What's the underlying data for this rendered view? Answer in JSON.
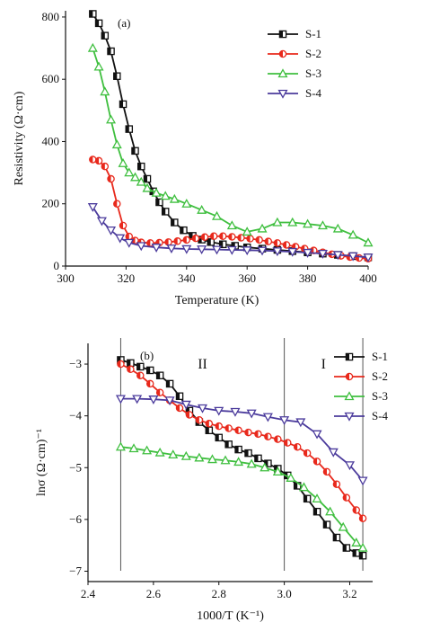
{
  "chart_data": [
    {
      "type": "line",
      "panel_label": "(a)",
      "xlabel": "Temperature (K)",
      "ylabel": "Resistivity (Ω·cm)",
      "xlim": [
        300,
        400
      ],
      "ylim": [
        0,
        820
      ],
      "xticks": [
        300,
        320,
        340,
        360,
        380,
        400
      ],
      "yticks": [
        0,
        200,
        400,
        600,
        800
      ],
      "legend_position": "top-right",
      "series": [
        {
          "name": "S-1",
          "color": "#111111",
          "marker": "square",
          "x": [
            309,
            311,
            313,
            315,
            317,
            319,
            321,
            323,
            325,
            327,
            329,
            331,
            333,
            336,
            339,
            342,
            345,
            348,
            352,
            356,
            360,
            365,
            370,
            375,
            380,
            385,
            390,
            395,
            400
          ],
          "y": [
            810,
            780,
            740,
            690,
            610,
            520,
            440,
            370,
            320,
            280,
            240,
            205,
            175,
            140,
            115,
            97,
            85,
            77,
            70,
            65,
            60,
            56,
            52,
            48,
            44,
            40,
            36,
            32,
            28
          ]
        },
        {
          "name": "S-2",
          "color": "#e8291c",
          "marker": "half-circle",
          "x": [
            309,
            311,
            313,
            315,
            317,
            319,
            321,
            323,
            325,
            328,
            331,
            334,
            337,
            340,
            343,
            346,
            349,
            352,
            355,
            358,
            361,
            364,
            367,
            370,
            373,
            376,
            379,
            382,
            385,
            388,
            391,
            394,
            397,
            400
          ],
          "y": [
            342,
            338,
            320,
            280,
            200,
            130,
            95,
            82,
            76,
            74,
            75,
            77,
            80,
            84,
            89,
            93,
            96,
            96,
            94,
            91,
            88,
            84,
            79,
            74,
            68,
            62,
            56,
            50,
            44,
            38,
            33,
            29,
            26,
            24
          ]
        },
        {
          "name": "S-3",
          "color": "#3fbf3f",
          "marker": "triangle-up",
          "x": [
            309,
            311,
            313,
            315,
            317,
            319,
            321,
            323,
            325,
            327,
            330,
            333,
            336,
            340,
            345,
            350,
            355,
            360,
            365,
            370,
            375,
            380,
            385,
            390,
            395,
            400
          ],
          "y": [
            700,
            640,
            560,
            470,
            390,
            330,
            300,
            285,
            270,
            250,
            235,
            225,
            215,
            200,
            180,
            160,
            130,
            110,
            120,
            140,
            140,
            135,
            130,
            120,
            100,
            75
          ]
        },
        {
          "name": "S-4",
          "color": "#4b3b9c",
          "marker": "triangle-down",
          "x": [
            309,
            312,
            315,
            318,
            321,
            325,
            330,
            335,
            340,
            345,
            350,
            355,
            360,
            365,
            370,
            375,
            380,
            385,
            390,
            395,
            400
          ],
          "y": [
            190,
            145,
            115,
            90,
            75,
            65,
            60,
            57,
            55,
            54,
            53,
            52,
            51,
            50,
            48,
            46,
            43,
            40,
            36,
            32,
            28
          ]
        }
      ]
    },
    {
      "type": "line",
      "panel_label": "(b)",
      "xlabel": "1000/T (K⁻¹)",
      "ylabel": "lnσ (Ω·cm)⁻¹",
      "xlim": [
        2.4,
        3.27
      ],
      "ylim": [
        -7.2,
        -2.6
      ],
      "xticks": [
        2.4,
        2.6,
        2.8,
        3.0,
        3.2
      ],
      "yticks": [
        -3,
        -4,
        -5,
        -6,
        -7
      ],
      "region_labels": [
        "II",
        "I"
      ],
      "region_boundaries": [
        2.5,
        3.0,
        3.24
      ],
      "legend_position": "top-right",
      "series": [
        {
          "name": "S-1",
          "color": "#111111",
          "marker": "square",
          "x": [
            2.5,
            2.53,
            2.56,
            2.59,
            2.62,
            2.65,
            2.68,
            2.71,
            2.74,
            2.77,
            2.8,
            2.83,
            2.86,
            2.89,
            2.92,
            2.95,
            2.98,
            3.01,
            3.04,
            3.07,
            3.1,
            3.13,
            3.16,
            3.19,
            3.22,
            3.24
          ],
          "y": [
            -2.92,
            -2.98,
            -3.05,
            -3.12,
            -3.22,
            -3.38,
            -3.62,
            -3.9,
            -4.12,
            -4.28,
            -4.42,
            -4.55,
            -4.65,
            -4.72,
            -4.82,
            -4.92,
            -5.02,
            -5.15,
            -5.35,
            -5.6,
            -5.85,
            -6.1,
            -6.35,
            -6.55,
            -6.65,
            -6.7
          ]
        },
        {
          "name": "S-2",
          "color": "#e8291c",
          "marker": "half-circle",
          "x": [
            2.5,
            2.53,
            2.56,
            2.59,
            2.62,
            2.65,
            2.68,
            2.71,
            2.74,
            2.77,
            2.8,
            2.83,
            2.86,
            2.89,
            2.92,
            2.95,
            2.98,
            3.01,
            3.04,
            3.07,
            3.1,
            3.13,
            3.16,
            3.19,
            3.22,
            3.24
          ],
          "y": [
            -3.0,
            -3.1,
            -3.22,
            -3.38,
            -3.55,
            -3.7,
            -3.85,
            -3.98,
            -4.08,
            -4.15,
            -4.2,
            -4.24,
            -4.28,
            -4.32,
            -4.35,
            -4.4,
            -4.45,
            -4.52,
            -4.6,
            -4.72,
            -4.88,
            -5.08,
            -5.32,
            -5.58,
            -5.82,
            -5.98
          ]
        },
        {
          "name": "S-3",
          "color": "#3fbf3f",
          "marker": "triangle-up",
          "x": [
            2.5,
            2.54,
            2.58,
            2.62,
            2.66,
            2.7,
            2.74,
            2.78,
            2.82,
            2.86,
            2.9,
            2.94,
            2.98,
            3.02,
            3.06,
            3.1,
            3.14,
            3.18,
            3.22,
            3.24
          ],
          "y": [
            -4.6,
            -4.63,
            -4.67,
            -4.71,
            -4.75,
            -4.78,
            -4.81,
            -4.84,
            -4.86,
            -4.89,
            -4.93,
            -5.0,
            -5.08,
            -5.2,
            -5.38,
            -5.6,
            -5.85,
            -6.15,
            -6.45,
            -6.55
          ]
        },
        {
          "name": "S-4",
          "color": "#4b3b9c",
          "marker": "triangle-down",
          "x": [
            2.5,
            2.55,
            2.6,
            2.65,
            2.7,
            2.75,
            2.8,
            2.85,
            2.9,
            2.95,
            3.0,
            3.05,
            3.1,
            3.15,
            3.2,
            3.24
          ],
          "y": [
            -3.67,
            -3.67,
            -3.68,
            -3.7,
            -3.78,
            -3.85,
            -3.9,
            -3.92,
            -3.95,
            -4.02,
            -4.08,
            -4.12,
            -4.35,
            -4.7,
            -4.95,
            -5.25
          ]
        }
      ]
    }
  ]
}
